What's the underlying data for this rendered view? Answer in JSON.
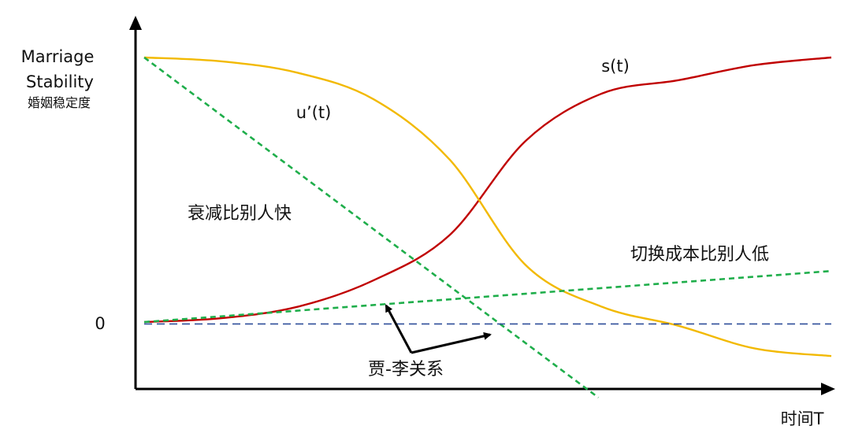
{
  "chart_data": {
    "type": "line",
    "ylabel_line1": "Marriage",
    "ylabel_line2": "Stability",
    "ylabel_cn": "婚姻稳定度",
    "xlabel": "时间T",
    "y_tick_zero": "0",
    "grid": false,
    "series": [
      {
        "name": "s(t)",
        "color": "#c00000",
        "style": "solid",
        "points": [
          [
            1,
            0.0
          ],
          [
            2,
            0.02
          ],
          [
            3,
            0.08
          ],
          [
            4,
            0.22
          ],
          [
            5,
            0.46
          ],
          [
            6,
            0.96
          ],
          [
            7,
            1.21
          ],
          [
            8,
            1.28
          ],
          [
            9,
            1.36
          ],
          [
            10,
            1.4
          ]
        ]
      },
      {
        "name": "u’(t)",
        "color": "#f2b900",
        "style": "solid",
        "points": [
          [
            1,
            1.4
          ],
          [
            2,
            1.38
          ],
          [
            3,
            1.32
          ],
          [
            4,
            1.18
          ],
          [
            5,
            0.86
          ],
          [
            6,
            0.3
          ],
          [
            7,
            0.08
          ],
          [
            8,
            -0.02
          ],
          [
            9,
            -0.14
          ],
          [
            10,
            -0.18
          ]
        ]
      },
      {
        "name": "",
        "color": "#1fae4b",
        "style": "dashed",
        "points": [
          [
            1,
            1.4
          ],
          [
            6.95,
            -0.4
          ]
        ]
      },
      {
        "name": "",
        "color": "#1fae4b",
        "style": "dashed",
        "points": [
          [
            1,
            0.0
          ],
          [
            10,
            0.27
          ]
        ]
      },
      {
        "name": "",
        "color": "#2f4f9a",
        "style": "dashed",
        "points": [
          [
            1,
            -0.01
          ],
          [
            10,
            -0.01
          ]
        ]
      }
    ],
    "annotations": {
      "decay": "衰减比别人快",
      "switch_cost": "切换成本比别人低",
      "relation": "贾-李关系"
    }
  }
}
